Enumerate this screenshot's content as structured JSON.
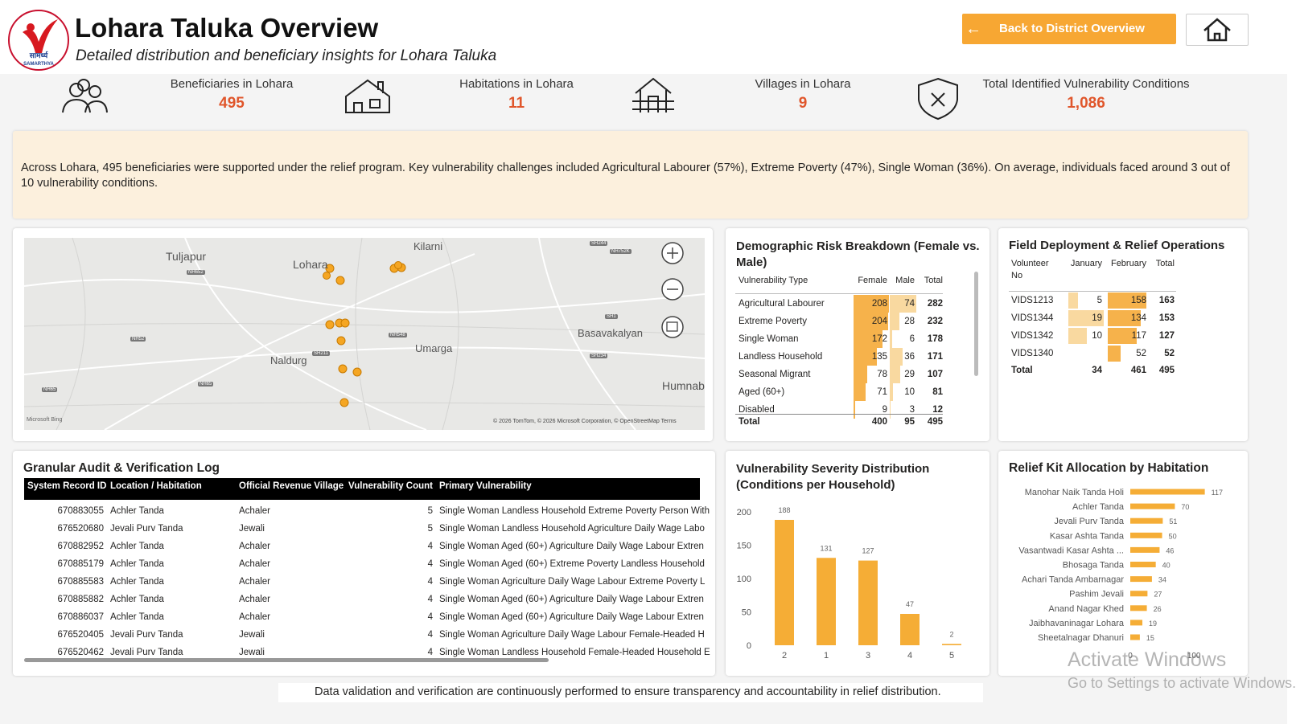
{
  "header": {
    "title": "Lohara Taluka Overview",
    "subtitle": "Detailed distribution and beneficiary insights for Lohara Taluka",
    "logo_text": [
      "सामर्थ्य",
      "SAMARTHYA"
    ],
    "back_button": "Back to District Overview"
  },
  "kpis": [
    {
      "label": "Beneficiaries in Lohara",
      "value": "495"
    },
    {
      "label": "Habitations in Lohara",
      "value": "11"
    },
    {
      "label": "Villages in Lohara",
      "value": "9"
    },
    {
      "label": "Total Identified Vulnerability Conditions",
      "value": "1,086"
    }
  ],
  "summary": "Across Lohara, 495 beneficiaries were supported under the relief program. Key vulnerability challenges included Agricultural Labourer (57%), Extreme Poverty (47%), Single Woman (36%). On average, individuals faced around 3 out of 10 vulnerability conditions.",
  "map": {
    "places": [
      "Tuljapur",
      "Lohara",
      "Kilarni",
      "Basavakalyan",
      "Naldurg",
      "Umarga",
      "Humnab"
    ],
    "roads": [
      "NH652",
      "NH52",
      "NH65",
      "NH548",
      "SH211",
      "NH65",
      "SH244",
      "NH752K",
      "SH1",
      "SH234"
    ],
    "attribution": "© 2026 TomTom, © 2026 Microsoft Corporation, © OpenStreetMap  Terms",
    "provider": "Microsoft Bing"
  },
  "demographics": {
    "title": "Demographic Risk Breakdown (Female vs. Male)",
    "columns": [
      "Vulnerability Type",
      "Female",
      "Male",
      "Total"
    ],
    "rows": [
      [
        "Agricultural Labourer",
        208,
        74,
        282
      ],
      [
        "Extreme Poverty",
        204,
        28,
        232
      ],
      [
        "Single Woman",
        172,
        6,
        178
      ],
      [
        "Landless Household",
        135,
        36,
        171
      ],
      [
        "Seasonal Migrant",
        78,
        29,
        107
      ],
      [
        "Aged (60+)",
        71,
        10,
        81
      ],
      [
        "Disabled",
        9,
        3,
        12
      ]
    ],
    "total": [
      "Total",
      400,
      95,
      495
    ]
  },
  "field": {
    "title": "Field Deployment & Relief Operations",
    "columns": [
      "Volunteer No",
      "January",
      "February",
      "Total"
    ],
    "rows": [
      [
        "VIDS1213",
        5,
        158,
        163
      ],
      [
        "VIDS1344",
        19,
        134,
        153
      ],
      [
        "VIDS1342",
        10,
        117,
        127
      ],
      [
        "VIDS1340",
        null,
        52,
        52
      ]
    ],
    "total": [
      "Total",
      34,
      461,
      495
    ]
  },
  "audit": {
    "title": "Granular Audit & Verification Log",
    "columns": [
      "System Record ID",
      "Location / Habitation",
      "Official Revenue Village",
      "Vulnerability Count",
      "Primary Vulnerability"
    ],
    "rows": [
      [
        "670883055",
        "Achler Tanda",
        "Achaler",
        5,
        "Single Woman Landless Household Extreme Poverty Person With"
      ],
      [
        "676520680",
        "Jevali Purv Tanda",
        "Jewali",
        5,
        "Single Woman Landless Household Agriculture Daily Wage Labo"
      ],
      [
        "670882952",
        "Achler Tanda",
        "Achaler",
        4,
        "Single Woman Aged (60+) Agriculture Daily Wage Labour Extren"
      ],
      [
        "670885179",
        "Achler Tanda",
        "Achaler",
        4,
        "Single Woman Aged (60+) Extreme Poverty Landless Household"
      ],
      [
        "670885583",
        "Achler Tanda",
        "Achaler",
        4,
        "Single Woman Agriculture Daily Wage Labour Extreme Poverty L"
      ],
      [
        "670885882",
        "Achler Tanda",
        "Achaler",
        4,
        "Single Woman Aged (60+) Agriculture Daily Wage Labour Extren"
      ],
      [
        "670886037",
        "Achler Tanda",
        "Achaler",
        4,
        "Single Woman Aged (60+) Agriculture Daily Wage Labour Extren"
      ],
      [
        "676520405",
        "Jevali Purv Tanda",
        "Jewali",
        4,
        "Single Woman Agriculture Daily Wage Labour Female-Headed H"
      ],
      [
        "676520462",
        "Jevali Purv Tanda",
        "Jewali",
        4,
        "Single Woman Landless Household Female-Headed Household E"
      ]
    ]
  },
  "chart_data": [
    {
      "type": "bar",
      "title": "Vulnerability Severity Distribution (Conditions per Household)",
      "categories": [
        "2",
        "1",
        "3",
        "4",
        "5"
      ],
      "values": [
        188,
        131,
        127,
        47,
        2
      ],
      "ylim": [
        0,
        200
      ],
      "yticks": [
        0,
        50,
        100,
        150,
        200
      ],
      "color": "#f5ad36"
    },
    {
      "type": "hbar",
      "title": "Relief Kit Allocation by Habitation",
      "categories": [
        "Manohar Naik Tanda Holi",
        "Achler Tanda",
        "Jevali Purv Tanda",
        "Kasar Ashta Tanda",
        "Vasantwadi Kasar Ashta ...",
        "Bhosaga Tanda",
        "Achari Tanda Ambarnagar",
        "Pashim Jevali",
        "Anand Nagar Khed",
        "Jaibhavaninagar Lohara",
        "Sheetalnagar Dhanuri"
      ],
      "values": [
        117,
        70,
        51,
        50,
        46,
        40,
        34,
        27,
        26,
        19,
        15
      ],
      "xlim": [
        0,
        120
      ],
      "xticks": [
        0,
        100
      ],
      "color": "#f5ad36"
    }
  ],
  "footer": "Data validation and verification are continuously performed to ensure transparency and accountability in relief distribution.",
  "watermark": [
    "Activate Windows",
    "Go to Settings to activate Windows."
  ]
}
